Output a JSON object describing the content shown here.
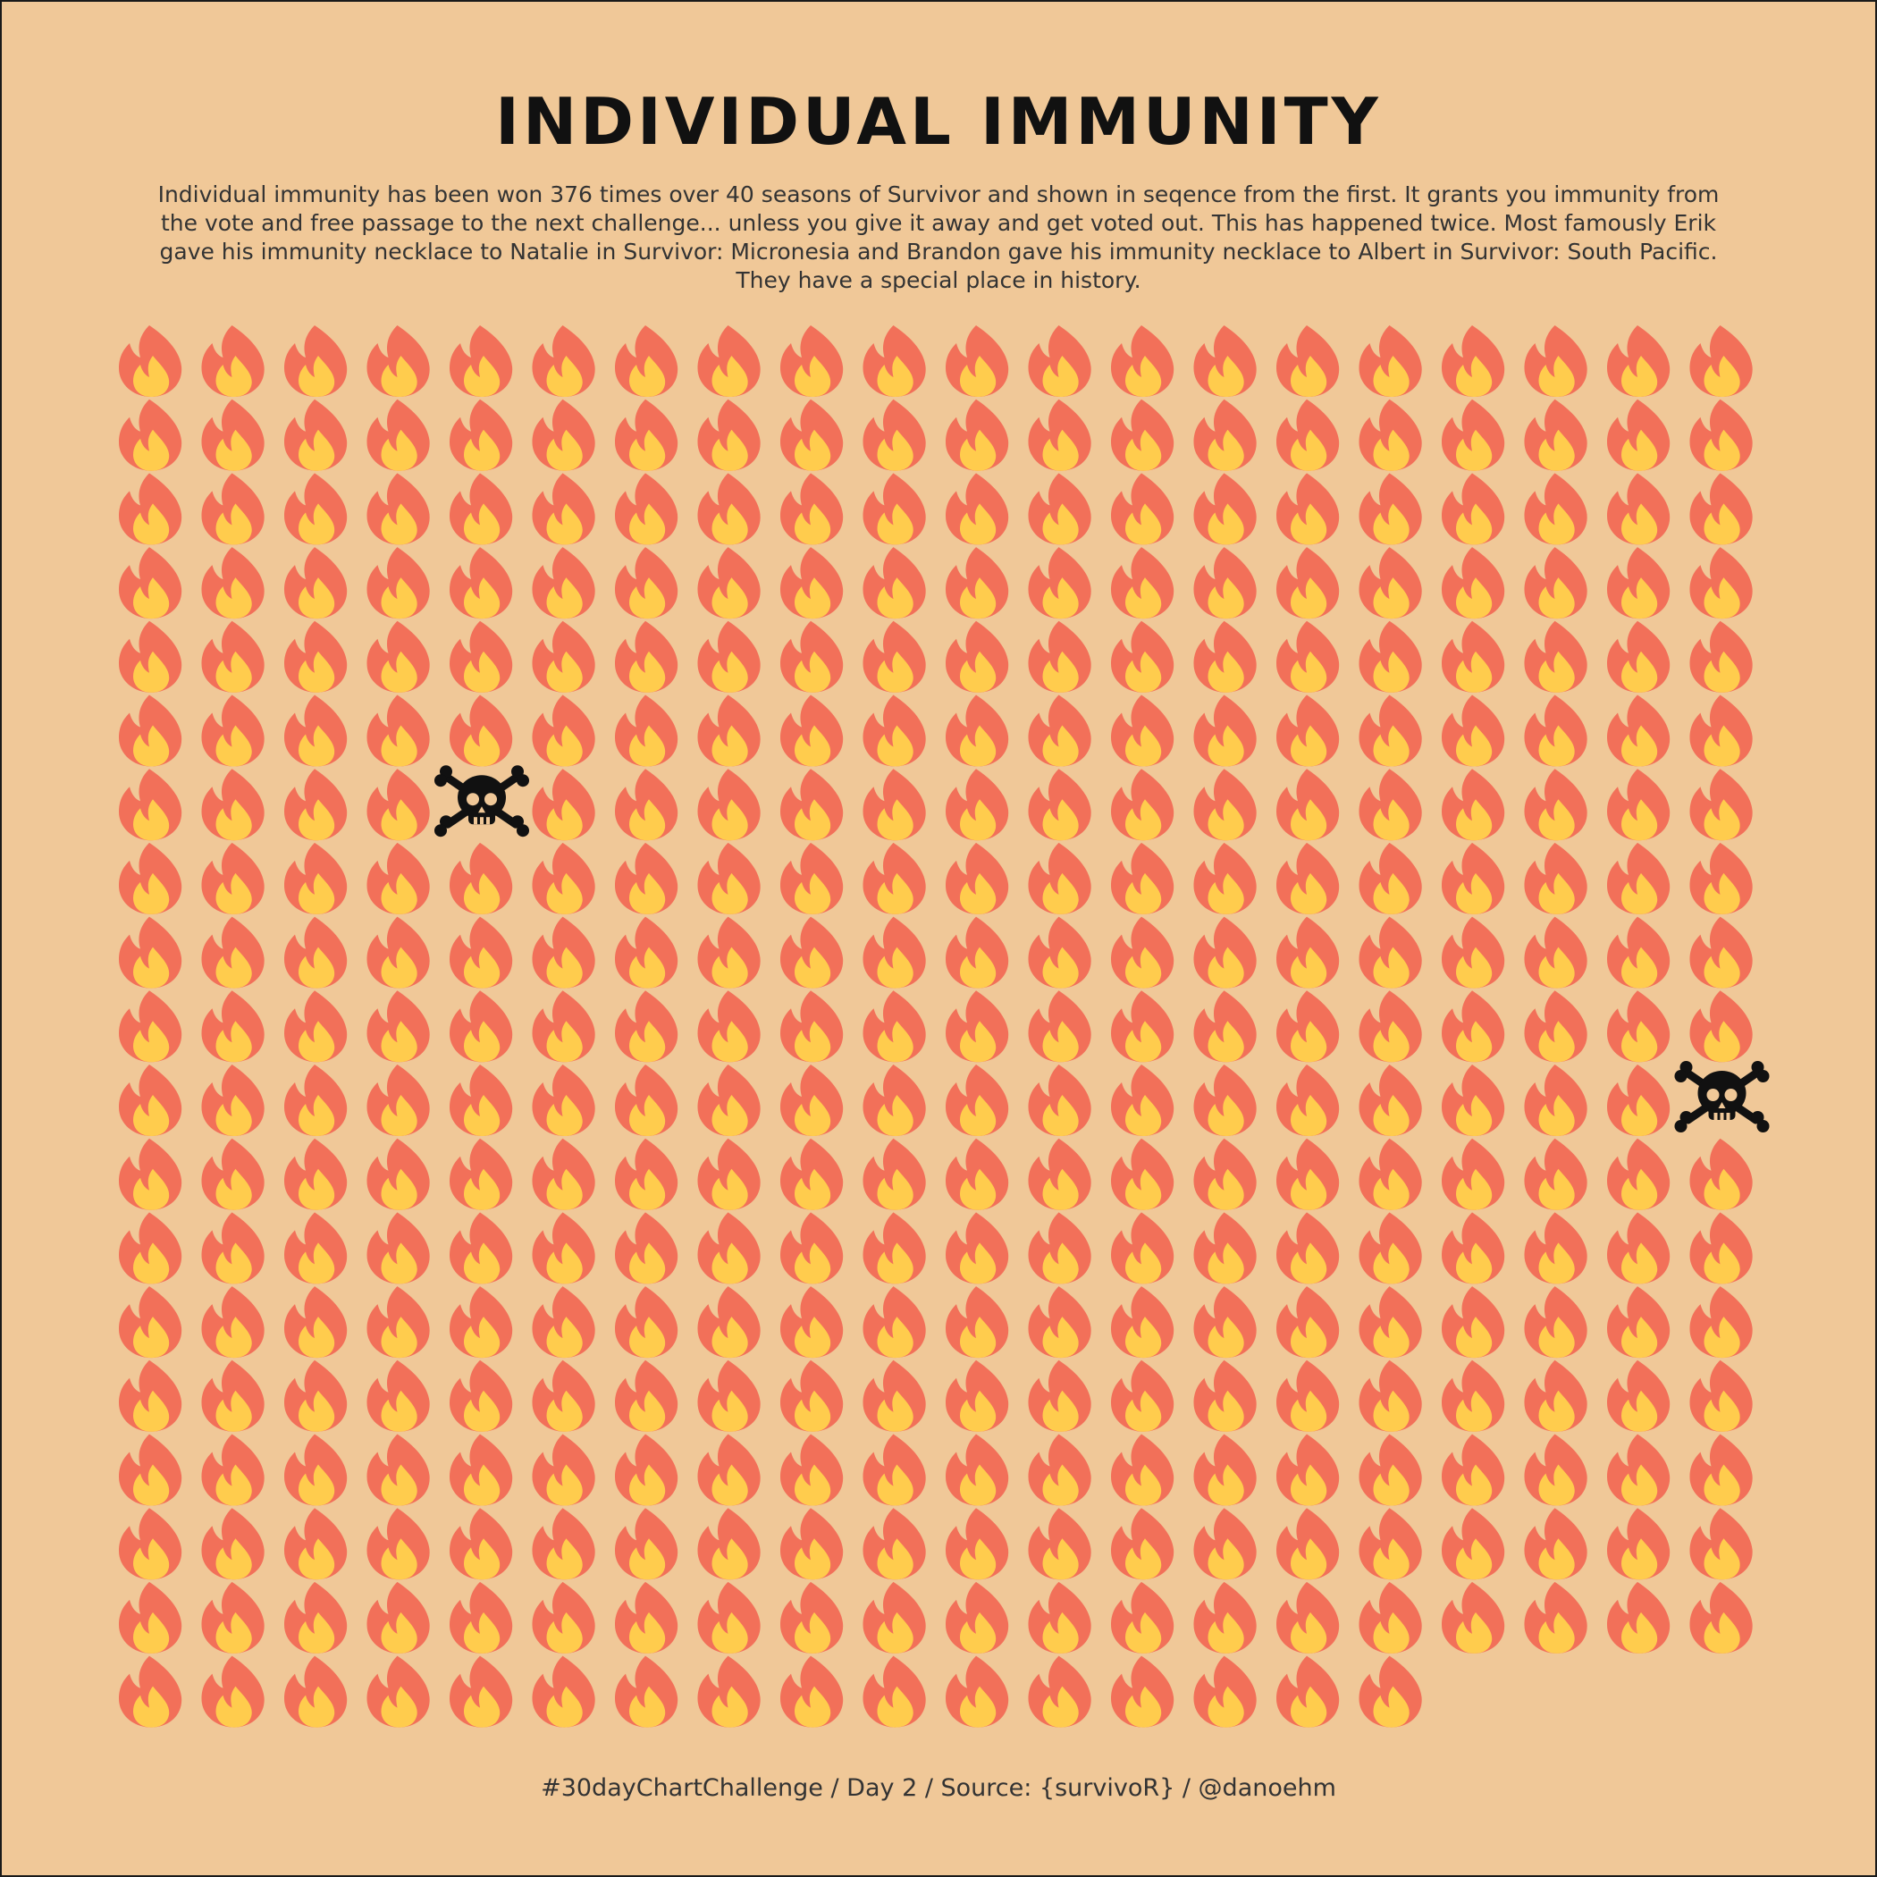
{
  "title": "INDIVIDUAL IMMUNITY",
  "subtitle": "Individual immunity has been won 376 times over 40 seasons of Survivor and shown in seqence from the first. It grants you immunity from the vote and free passage to the next challenge... unless you give it away and get voted out. This has happened twice. Most famously Erik gave his immunity necklace to Natalie in Survivor: Micronesia and Brandon gave his immunity necklace to Albert in Survivor: South Pacific. They have a special place in history.",
  "caption": "#30dayChartChallenge / Day 2 / Source: {survivoR} / @danoehm",
  "colors": {
    "background": "#F0C898",
    "flame_outer": "#F27059",
    "flame_inner": "#FFCC4D",
    "skull": "#111111",
    "text": "#333333"
  },
  "chart_data": {
    "type": "waffle",
    "total": 376,
    "columns": 20,
    "fill_order": "row-major, left to right, top to bottom",
    "default_icon": "flame-icon",
    "special_icon": "skull-crossbones-icon",
    "special_positions": [
      124,
      219
    ]
  }
}
